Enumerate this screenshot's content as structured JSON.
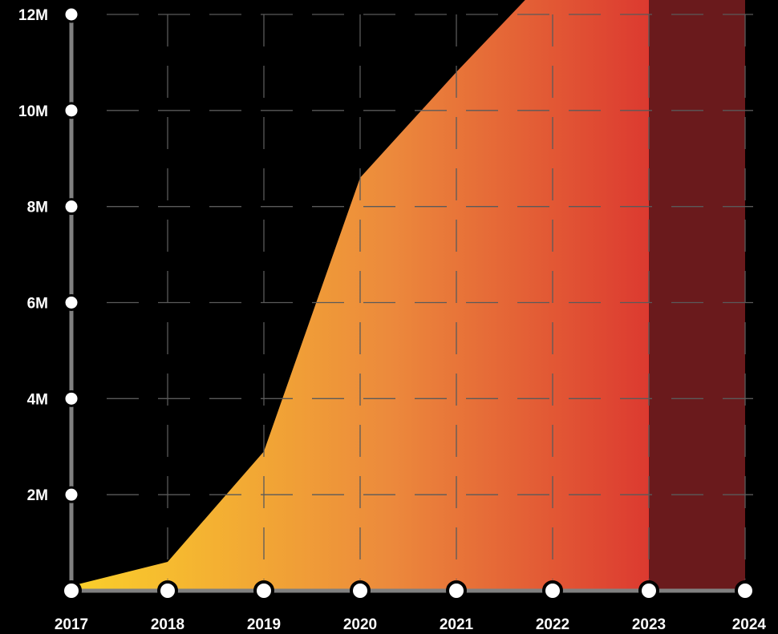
{
  "chart_data": {
    "type": "area",
    "title": "",
    "xlabel": "",
    "ylabel": "",
    "x": [
      "2017",
      "2018",
      "2019",
      "2020",
      "2021",
      "2022",
      "2023",
      "2024"
    ],
    "series": [
      {
        "values": [
          0.1,
          0.6,
          2.9,
          8.6,
          10.8,
          12.9,
          14.0,
          null
        ]
      }
    ],
    "ylim": [
      0,
      12
    ],
    "y_ticks": [
      {
        "value": 2,
        "label": "2M"
      },
      {
        "value": 4,
        "label": "4M"
      },
      {
        "value": 6,
        "label": "6M"
      },
      {
        "value": 8,
        "label": "8M"
      },
      {
        "value": 10,
        "label": "10M"
      },
      {
        "value": 12,
        "label": "12M"
      }
    ],
    "highlight_range": [
      "2023",
      "2024"
    ],
    "grid": true,
    "grid_style": "dashed",
    "colors": {
      "background": "#000000",
      "gradient_start": "#FAD02A",
      "gradient_mid": "#EC8A3C",
      "gradient_end": "#DC3A30",
      "highlight": "#6A1A1C",
      "axis": "#808080",
      "grid": "#5A5A5A",
      "marker_fill": "#FFFFFF",
      "text": "#FFFFFF"
    }
  }
}
